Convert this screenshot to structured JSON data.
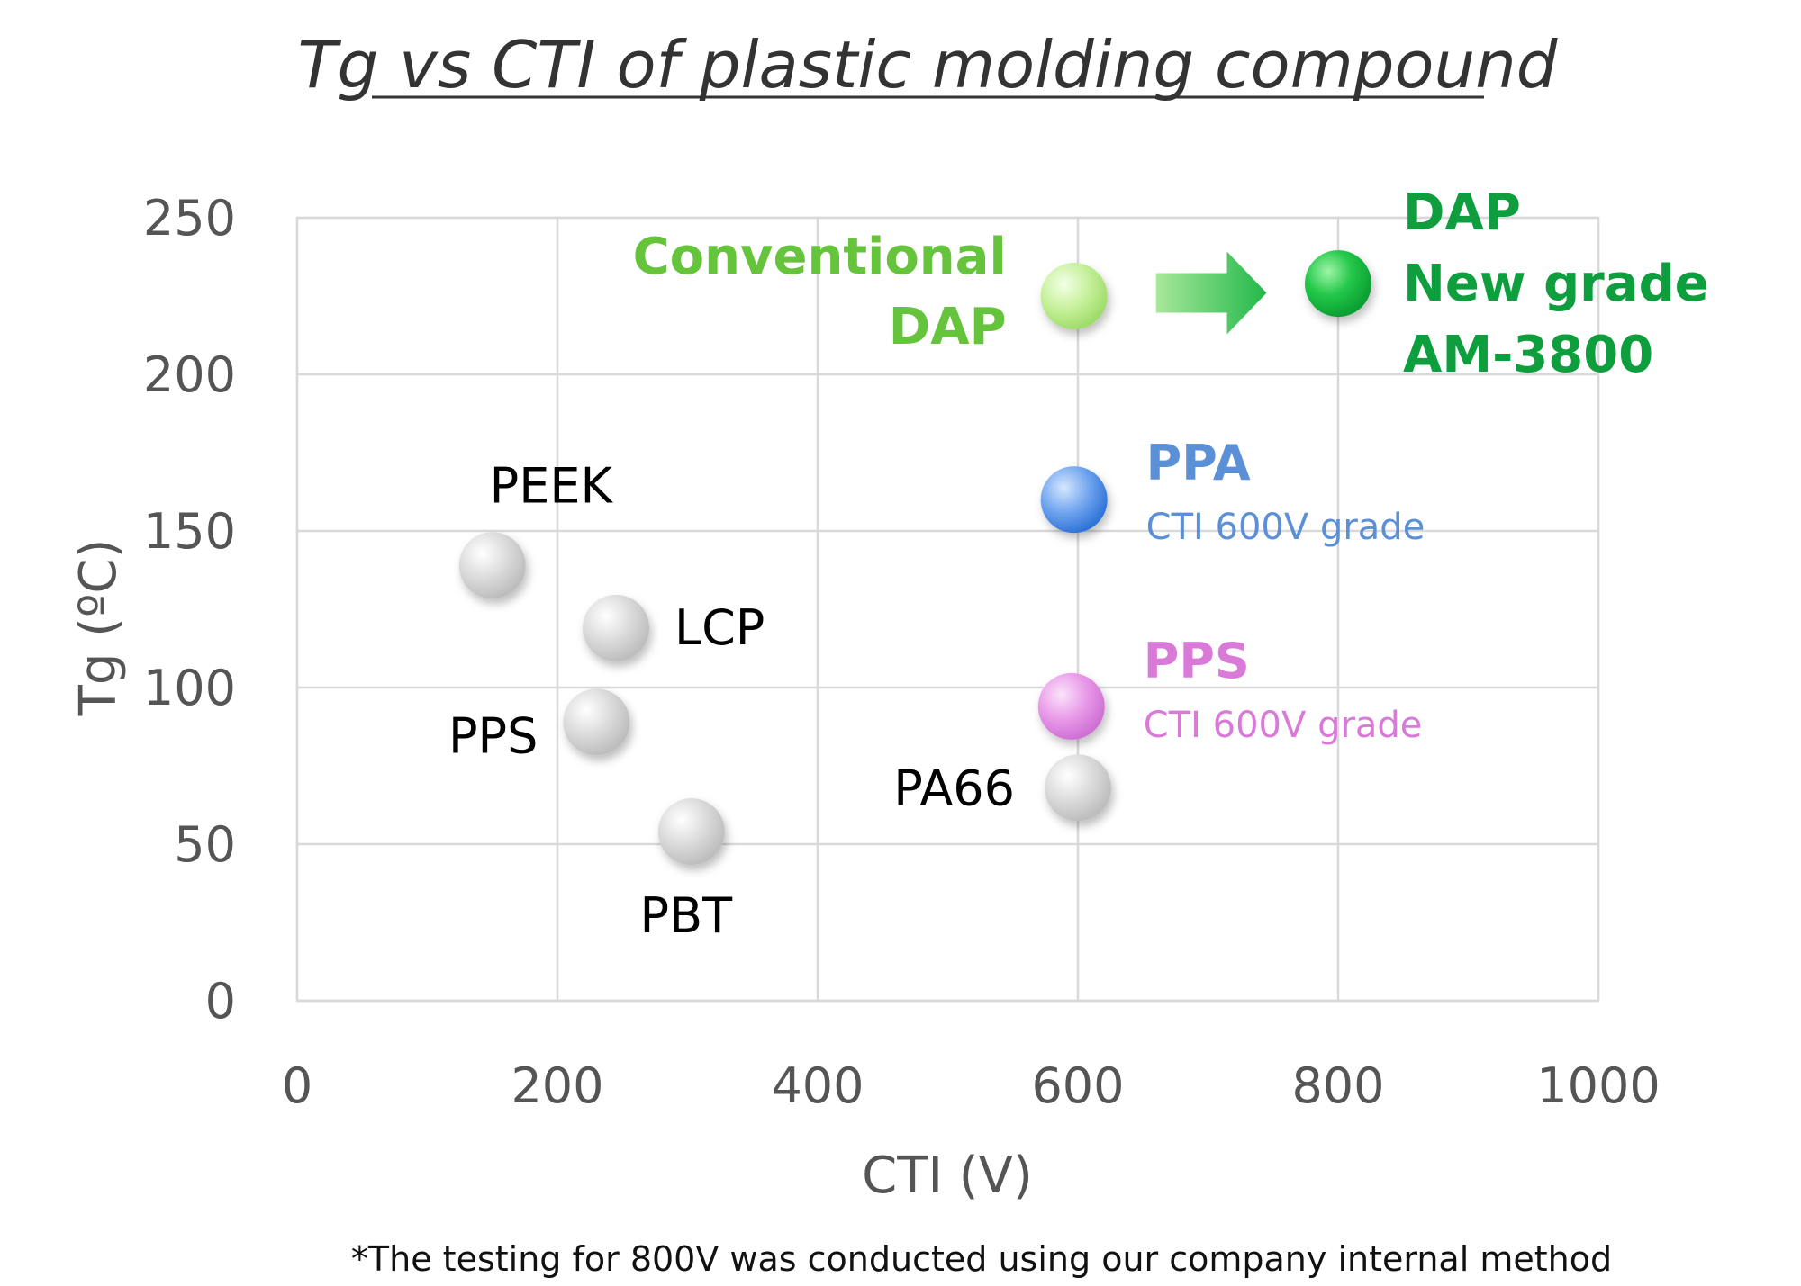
{
  "chart_data": {
    "type": "scatter",
    "title": "Tg vs CTI of plastic molding compound",
    "xlabel": "CTI (V)",
    "ylabel": "Tg (ºC)",
    "xlim": [
      0,
      1000
    ],
    "ylim": [
      0,
      250
    ],
    "x_ticks": [
      "0",
      "200",
      "400",
      "600",
      "800",
      "1000"
    ],
    "y_ticks": [
      "0",
      "50",
      "100",
      "150",
      "200",
      "250"
    ],
    "grid": true,
    "points": [
      {
        "id": "peek",
        "x": 150,
        "y": 139,
        "color": "#cfcfcf",
        "label": [
          "PEEK"
        ],
        "label_color": "#000000"
      },
      {
        "id": "lcp",
        "x": 245,
        "y": 119,
        "color": "#cfcfcf",
        "label": [
          "LCP"
        ],
        "label_color": "#000000"
      },
      {
        "id": "pps",
        "x": 230,
        "y": 89,
        "color": "#cfcfcf",
        "label": [
          "PPS"
        ],
        "label_color": "#000000"
      },
      {
        "id": "pbt",
        "x": 303,
        "y": 54,
        "color": "#cfcfcf",
        "label": [
          "PBT"
        ],
        "label_color": "#000000"
      },
      {
        "id": "pa66",
        "x": 600,
        "y": 68,
        "color": "#cfcfcf",
        "label": [
          "PA66"
        ],
        "label_color": "#000000"
      },
      {
        "id": "pps-600v",
        "x": 595,
        "y": 94,
        "color": "#e08fe0",
        "label": [
          "PPS",
          "CTI 600V grade"
        ],
        "label_color": "#d97ad9"
      },
      {
        "id": "ppa-600v",
        "x": 597,
        "y": 160,
        "color": "#5b95e6",
        "label": [
          "PPA",
          "CTI 600V grade"
        ],
        "label_color": "#5b8fd6"
      },
      {
        "id": "conventional-dap",
        "x": 597,
        "y": 225,
        "color": "#b9ec86",
        "label": [
          "Conventional",
          "DAP"
        ],
        "label_color": "#66c43c"
      },
      {
        "id": "dap-new-grade",
        "x": 800,
        "y": 229,
        "color": "#1fb84a",
        "label": [
          "DAP",
          "New grade",
          "AM-3800"
        ],
        "label_color": "#0f9e3e"
      }
    ],
    "arrow": {
      "from_x": 660,
      "to_x": 745,
      "y": 226,
      "color": "#4cc85a"
    },
    "footnote": "*The testing for 800V was conducted using our company internal method"
  }
}
